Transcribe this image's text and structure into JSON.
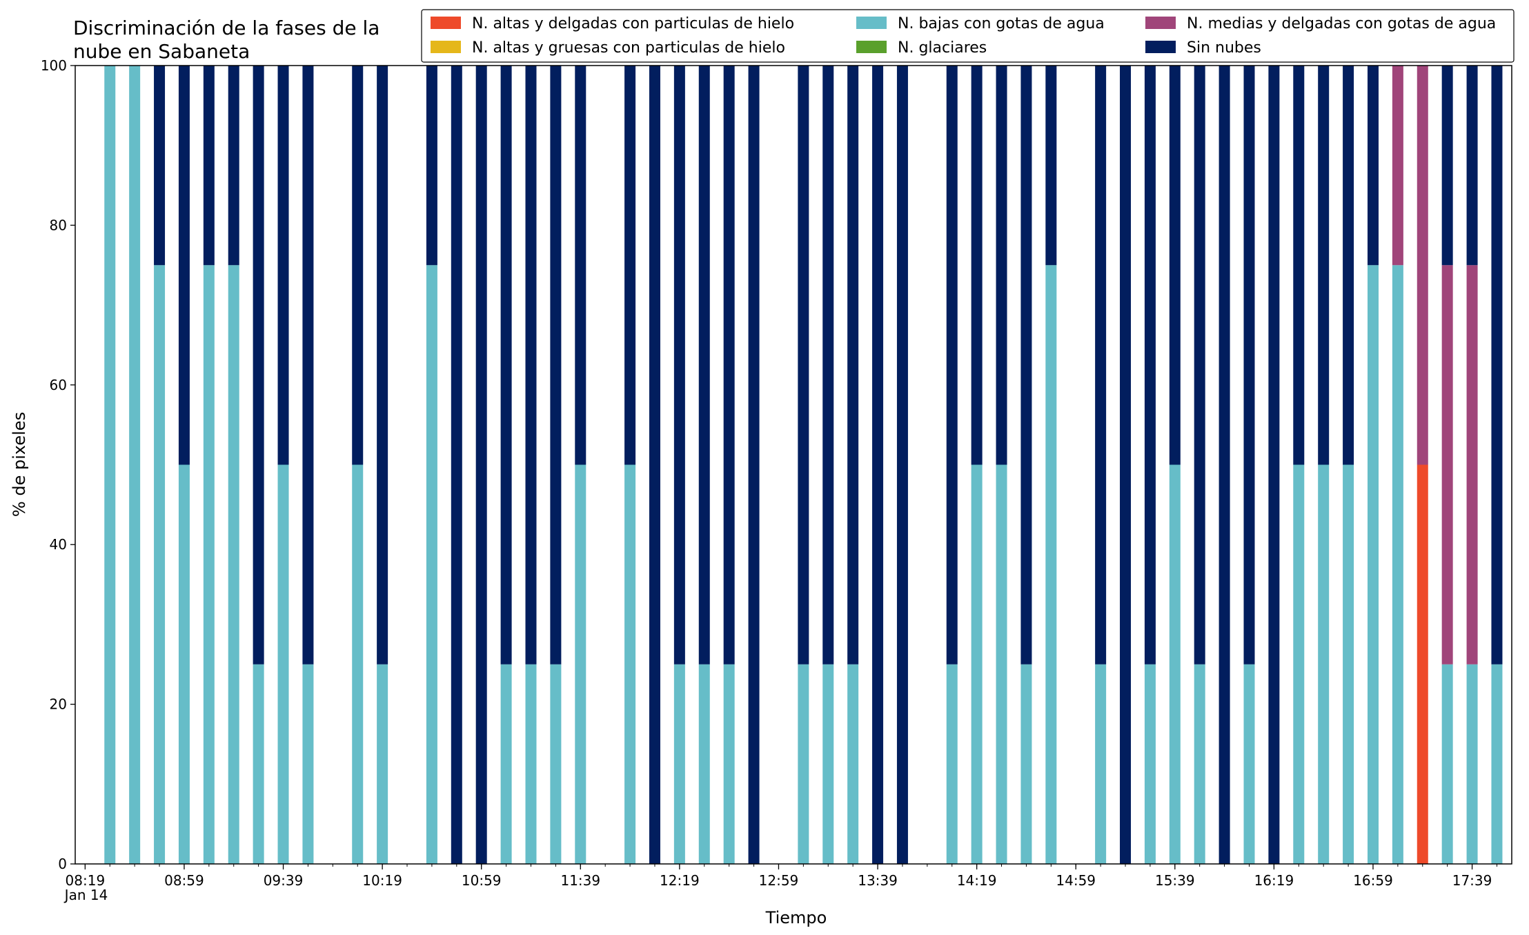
{
  "chart_data": {
    "type": "bar",
    "stacked": true,
    "title_lines": [
      "Discriminación de la fases de la",
      "nube en Sabaneta"
    ],
    "xlabel": "Tiempo",
    "ylabel": "% de pixeles",
    "ylim": [
      0,
      100
    ],
    "yticks": [
      0,
      20,
      40,
      60,
      80,
      100
    ],
    "xlim": [
      "08:15",
      "17:55"
    ],
    "x_tick_labels": [
      {
        "time": "08:19",
        "label": "08:19"
      },
      {
        "time": "08:59",
        "label": "08:59"
      },
      {
        "time": "09:39",
        "label": "09:39"
      },
      {
        "time": "10:19",
        "label": "10:19"
      },
      {
        "time": "10:59",
        "label": "10:59"
      },
      {
        "time": "11:39",
        "label": "11:39"
      },
      {
        "time": "12:19",
        "label": "12:19"
      },
      {
        "time": "12:59",
        "label": "12:59"
      },
      {
        "time": "13:39",
        "label": "13:39"
      },
      {
        "time": "14:19",
        "label": "14:19"
      },
      {
        "time": "14:59",
        "label": "14:59"
      },
      {
        "time": "15:39",
        "label": "15:39"
      },
      {
        "time": "16:19",
        "label": "16:19"
      },
      {
        "time": "16:59",
        "label": "16:59"
      },
      {
        "time": "17:39",
        "label": "17:39"
      }
    ],
    "date_label": "Jan 14",
    "x_minor_tick_step_minutes": 10,
    "legend_position": "top-right",
    "legend_columns": 3,
    "series": [
      {
        "name": "N. altas y delgadas con particulas de hielo",
        "color": "#ee4a2a"
      },
      {
        "name": "N. altas y gruesas con particulas de hielo",
        "color": "#e5b71a"
      },
      {
        "name": "N. bajas con gotas de agua",
        "color": "#66bdc8"
      },
      {
        "name": "N. glaciares",
        "color": "#5aa02c"
      },
      {
        "name": "N. medias y delgadas con gotas de agua",
        "color": "#a0457a"
      },
      {
        "name": "Sin nubes",
        "color": "#021e5e"
      }
    ],
    "data": [
      {
        "time": "08:29",
        "values": [
          0,
          0,
          100,
          0,
          0,
          0
        ]
      },
      {
        "time": "08:39",
        "values": [
          0,
          0,
          100,
          0,
          0,
          0
        ]
      },
      {
        "time": "08:49",
        "values": [
          0,
          0,
          75,
          0,
          0,
          25
        ]
      },
      {
        "time": "08:59",
        "values": [
          0,
          0,
          50,
          0,
          0,
          50
        ]
      },
      {
        "time": "09:09",
        "values": [
          0,
          0,
          75,
          0,
          0,
          25
        ]
      },
      {
        "time": "09:19",
        "values": [
          0,
          0,
          75,
          0,
          0,
          25
        ]
      },
      {
        "time": "09:29",
        "values": [
          0,
          0,
          25,
          0,
          0,
          75
        ]
      },
      {
        "time": "09:39",
        "values": [
          0,
          0,
          50,
          0,
          0,
          50
        ]
      },
      {
        "time": "09:49",
        "values": [
          0,
          0,
          25,
          0,
          0,
          75
        ]
      },
      {
        "time": "10:09",
        "values": [
          0,
          0,
          50,
          0,
          0,
          50
        ]
      },
      {
        "time": "10:19",
        "values": [
          0,
          0,
          25,
          0,
          0,
          75
        ]
      },
      {
        "time": "10:39",
        "values": [
          0,
          0,
          75,
          0,
          0,
          25
        ]
      },
      {
        "time": "10:49",
        "values": [
          0,
          0,
          0,
          0,
          0,
          100
        ]
      },
      {
        "time": "10:59",
        "values": [
          0,
          0,
          0,
          0,
          0,
          100
        ]
      },
      {
        "time": "11:09",
        "values": [
          0,
          0,
          25,
          0,
          0,
          75
        ]
      },
      {
        "time": "11:19",
        "values": [
          0,
          0,
          25,
          0,
          0,
          75
        ]
      },
      {
        "time": "11:29",
        "values": [
          0,
          0,
          25,
          0,
          0,
          75
        ]
      },
      {
        "time": "11:39",
        "values": [
          0,
          0,
          50,
          0,
          0,
          50
        ]
      },
      {
        "time": "11:59",
        "values": [
          0,
          0,
          50,
          0,
          0,
          50
        ]
      },
      {
        "time": "12:09",
        "values": [
          0,
          0,
          0,
          0,
          0,
          100
        ]
      },
      {
        "time": "12:19",
        "values": [
          0,
          0,
          25,
          0,
          0,
          75
        ]
      },
      {
        "time": "12:29",
        "values": [
          0,
          0,
          25,
          0,
          0,
          75
        ]
      },
      {
        "time": "12:39",
        "values": [
          0,
          0,
          25,
          0,
          0,
          75
        ]
      },
      {
        "time": "12:49",
        "values": [
          0,
          0,
          0,
          0,
          0,
          100
        ]
      },
      {
        "time": "13:09",
        "values": [
          0,
          0,
          25,
          0,
          0,
          75
        ]
      },
      {
        "time": "13:19",
        "values": [
          0,
          0,
          25,
          0,
          0,
          75
        ]
      },
      {
        "time": "13:29",
        "values": [
          0,
          0,
          25,
          0,
          0,
          75
        ]
      },
      {
        "time": "13:39",
        "values": [
          0,
          0,
          0,
          0,
          0,
          100
        ]
      },
      {
        "time": "13:49",
        "values": [
          0,
          0,
          0,
          0,
          0,
          100
        ]
      },
      {
        "time": "14:09",
        "values": [
          0,
          0,
          25,
          0,
          0,
          75
        ]
      },
      {
        "time": "14:19",
        "values": [
          0,
          0,
          50,
          0,
          0,
          50
        ]
      },
      {
        "time": "14:29",
        "values": [
          0,
          0,
          50,
          0,
          0,
          50
        ]
      },
      {
        "time": "14:39",
        "values": [
          0,
          0,
          25,
          0,
          0,
          75
        ]
      },
      {
        "time": "14:49",
        "values": [
          0,
          0,
          75,
          0,
          0,
          25
        ]
      },
      {
        "time": "15:09",
        "values": [
          0,
          0,
          25,
          0,
          0,
          75
        ]
      },
      {
        "time": "15:19",
        "values": [
          0,
          0,
          0,
          0,
          0,
          100
        ]
      },
      {
        "time": "15:29",
        "values": [
          0,
          0,
          25,
          0,
          0,
          75
        ]
      },
      {
        "time": "15:39",
        "values": [
          0,
          0,
          50,
          0,
          0,
          50
        ]
      },
      {
        "time": "15:49",
        "values": [
          0,
          0,
          25,
          0,
          0,
          75
        ]
      },
      {
        "time": "15:59",
        "values": [
          0,
          0,
          0,
          0,
          0,
          100
        ]
      },
      {
        "time": "16:09",
        "values": [
          0,
          0,
          25,
          0,
          0,
          75
        ]
      },
      {
        "time": "16:19",
        "values": [
          0,
          0,
          0,
          0,
          0,
          100
        ]
      },
      {
        "time": "16:29",
        "values": [
          0,
          0,
          50,
          0,
          0,
          50
        ]
      },
      {
        "time": "16:39",
        "values": [
          0,
          0,
          50,
          0,
          0,
          50
        ]
      },
      {
        "time": "16:49",
        "values": [
          0,
          0,
          50,
          0,
          0,
          50
        ]
      },
      {
        "time": "16:59",
        "values": [
          0,
          0,
          75,
          0,
          0,
          25
        ]
      },
      {
        "time": "17:09",
        "values": [
          0,
          0,
          75,
          0,
          25,
          0
        ]
      },
      {
        "time": "17:19",
        "values": [
          50,
          0,
          0,
          0,
          50,
          0
        ]
      },
      {
        "time": "17:29",
        "values": [
          0,
          0,
          25,
          0,
          50,
          25
        ]
      },
      {
        "time": "17:39",
        "values": [
          0,
          0,
          25,
          0,
          50,
          25
        ]
      },
      {
        "time": "17:49",
        "values": [
          0,
          0,
          25,
          0,
          0,
          75
        ]
      }
    ]
  }
}
